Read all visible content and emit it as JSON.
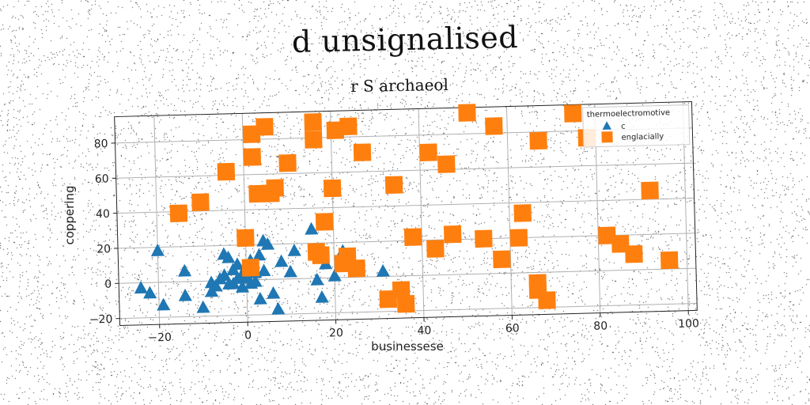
{
  "title": "d unsignalised",
  "subtitle": "r S archaeol",
  "chart_data": {
    "type": "scatter",
    "xlabel": "businessese",
    "ylabel": "coppering",
    "xlim": [
      -29,
      102
    ],
    "ylim": [
      -24,
      95
    ],
    "xticks": [
      -20,
      0,
      20,
      40,
      60,
      80,
      100
    ],
    "yticks": [
      -20,
      0,
      20,
      40,
      60,
      80
    ],
    "grid": true,
    "legend_position": "top-right",
    "legend_title": "thermoelectromotive",
    "series": [
      {
        "name": "c",
        "marker": "triangle",
        "color": "#1f77b4",
        "x": [
          -24,
          -22,
          -20,
          -19,
          -14,
          -14,
          -10,
          -8,
          -8,
          -7,
          -6,
          -5,
          -5,
          -4,
          -4,
          -3,
          -3,
          -2,
          -2,
          -1,
          -1,
          0,
          0,
          1,
          1,
          2,
          2,
          3,
          3,
          4,
          4,
          5,
          6,
          7,
          8,
          10,
          11,
          15,
          16,
          16,
          17,
          18,
          20,
          22,
          31
        ],
        "y": [
          -3,
          -6,
          18,
          -13,
          6,
          -8,
          -15,
          -6,
          -1,
          -3,
          1,
          15,
          3,
          -2,
          13,
          6,
          -2,
          9,
          1,
          -4,
          3,
          8,
          1,
          -2,
          11,
          4,
          -1,
          -11,
          14,
          5,
          22,
          20,
          -8,
          -17,
          10,
          4,
          16,
          28,
          14,
          -1,
          -11,
          8,
          1,
          15,
          3
        ]
      },
      {
        "name": "englacially",
        "marker": "square",
        "color": "#ff7f0e",
        "x": [
          -15,
          -10,
          -4,
          0,
          1,
          2,
          2,
          3,
          5,
          6,
          7,
          10,
          16,
          16,
          16,
          17,
          18,
          20,
          21,
          22,
          24,
          23,
          25,
          27,
          32,
          34,
          35,
          36,
          38,
          42,
          43,
          46,
          47,
          51,
          54,
          57,
          58,
          62,
          63,
          66,
          67,
          66,
          68,
          75,
          78,
          82,
          85,
          88,
          92,
          96
        ],
        "y": [
          39,
          45,
          62,
          24,
          7,
          83,
          70,
          49,
          87,
          49,
          52,
          66,
          15,
          79,
          89,
          13,
          32,
          51,
          84,
          8,
          86,
          12,
          5,
          71,
          -13,
          52,
          -8,
          -16,
          22,
          70,
          15,
          63,
          23,
          92,
          20,
          84,
          8,
          20,
          34,
          -6,
          75,
          -10,
          -16,
          90,
          76,
          20,
          15,
          9,
          45,
          5
        ]
      }
    ]
  }
}
